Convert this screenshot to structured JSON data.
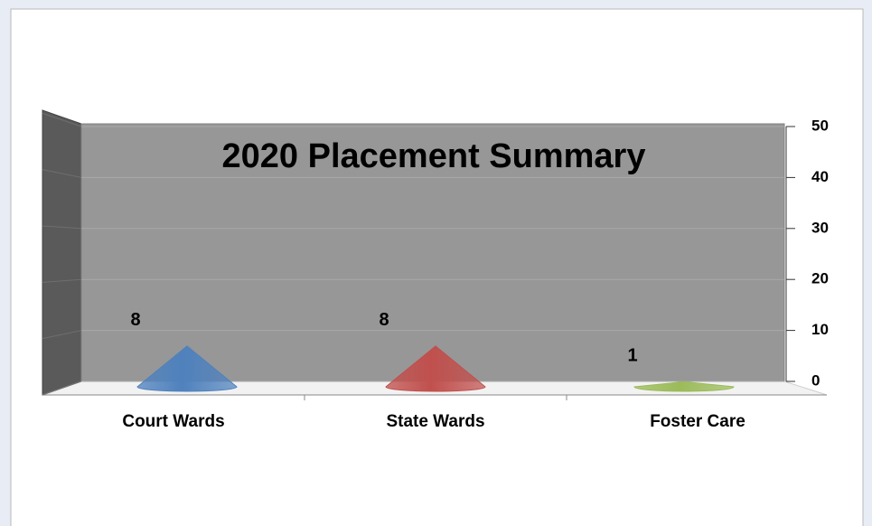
{
  "chart_data": {
    "type": "cone",
    "title": "2020 Placement Summary",
    "categories": [
      "Court Wards",
      "State Wards",
      "Foster Care"
    ],
    "values": [
      8,
      8,
      1
    ],
    "colors": [
      "#4f81bd",
      "#c0504d",
      "#9bbb59"
    ],
    "ylim": [
      0,
      50
    ],
    "yticks": [
      0,
      10,
      20,
      30,
      40,
      50
    ],
    "grid": true
  }
}
